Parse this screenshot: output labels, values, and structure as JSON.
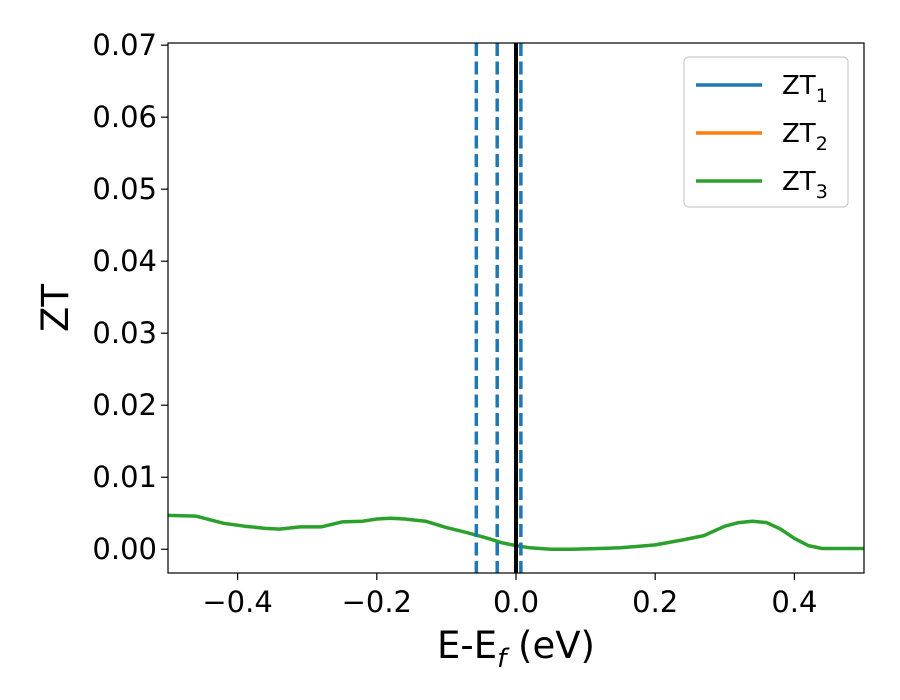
{
  "chart_data": {
    "type": "line",
    "title": "",
    "xlabel": "E-E",
    "xlabel_sub": "f",
    "xlabel_unit": " (eV)",
    "ylabel": "ZT",
    "xlim": [
      -0.5,
      0.5
    ],
    "ylim": [
      -0.0033,
      0.0703
    ],
    "xticks": [
      -0.4,
      -0.2,
      0.0,
      0.2,
      0.4
    ],
    "xtick_labels": [
      "−0.4",
      "−0.2",
      "0.0",
      "0.2",
      "0.4"
    ],
    "yticks": [
      0.0,
      0.01,
      0.02,
      0.03,
      0.04,
      0.05,
      0.06,
      0.07
    ],
    "ytick_labels": [
      "0.00",
      "0.01",
      "0.02",
      "0.03",
      "0.04",
      "0.05",
      "0.06",
      "0.07"
    ],
    "grid": false,
    "legend_position": "top-right",
    "series": [
      {
        "name": "ZT",
        "sub": "1",
        "color": "#1f77b4",
        "x": [],
        "y": []
      },
      {
        "name": "ZT",
        "sub": "2",
        "color": "#ff7f0e",
        "x": [],
        "y": []
      },
      {
        "name": "ZT",
        "sub": "3",
        "color": "#2ca02c",
        "x": [
          -0.5,
          -0.46,
          -0.42,
          -0.39,
          -0.36,
          -0.34,
          -0.31,
          -0.28,
          -0.25,
          -0.22,
          -0.2,
          -0.18,
          -0.16,
          -0.13,
          -0.1,
          -0.07,
          -0.04,
          -0.02,
          0.0,
          0.02,
          0.05,
          0.08,
          0.12,
          0.15,
          0.2,
          0.24,
          0.27,
          0.3,
          0.32,
          0.34,
          0.36,
          0.38,
          0.4,
          0.42,
          0.44,
          0.47,
          0.5
        ],
        "y": [
          0.0047,
          0.0046,
          0.0036,
          0.0032,
          0.0029,
          0.0028,
          0.0031,
          0.0031,
          0.0038,
          0.0039,
          0.0042,
          0.0043,
          0.0042,
          0.0039,
          0.003,
          0.0023,
          0.0015,
          0.0009,
          0.0005,
          0.0002,
          0.0,
          0.0,
          0.0001,
          0.0002,
          0.0006,
          0.0013,
          0.0019,
          0.0032,
          0.0037,
          0.0039,
          0.0037,
          0.0028,
          0.0015,
          0.0005,
          0.0001,
          0.0001,
          0.0001
        ]
      }
    ],
    "vlines": [
      {
        "x": 0.0,
        "color": "#000000",
        "style": "solid"
      },
      {
        "x": -0.057,
        "color": "#1f77b4",
        "style": "dashed"
      },
      {
        "x": -0.027,
        "color": "#1f77b4",
        "style": "dashed"
      },
      {
        "x": 0.007,
        "color": "#1f77b4",
        "style": "dashed"
      }
    ]
  }
}
